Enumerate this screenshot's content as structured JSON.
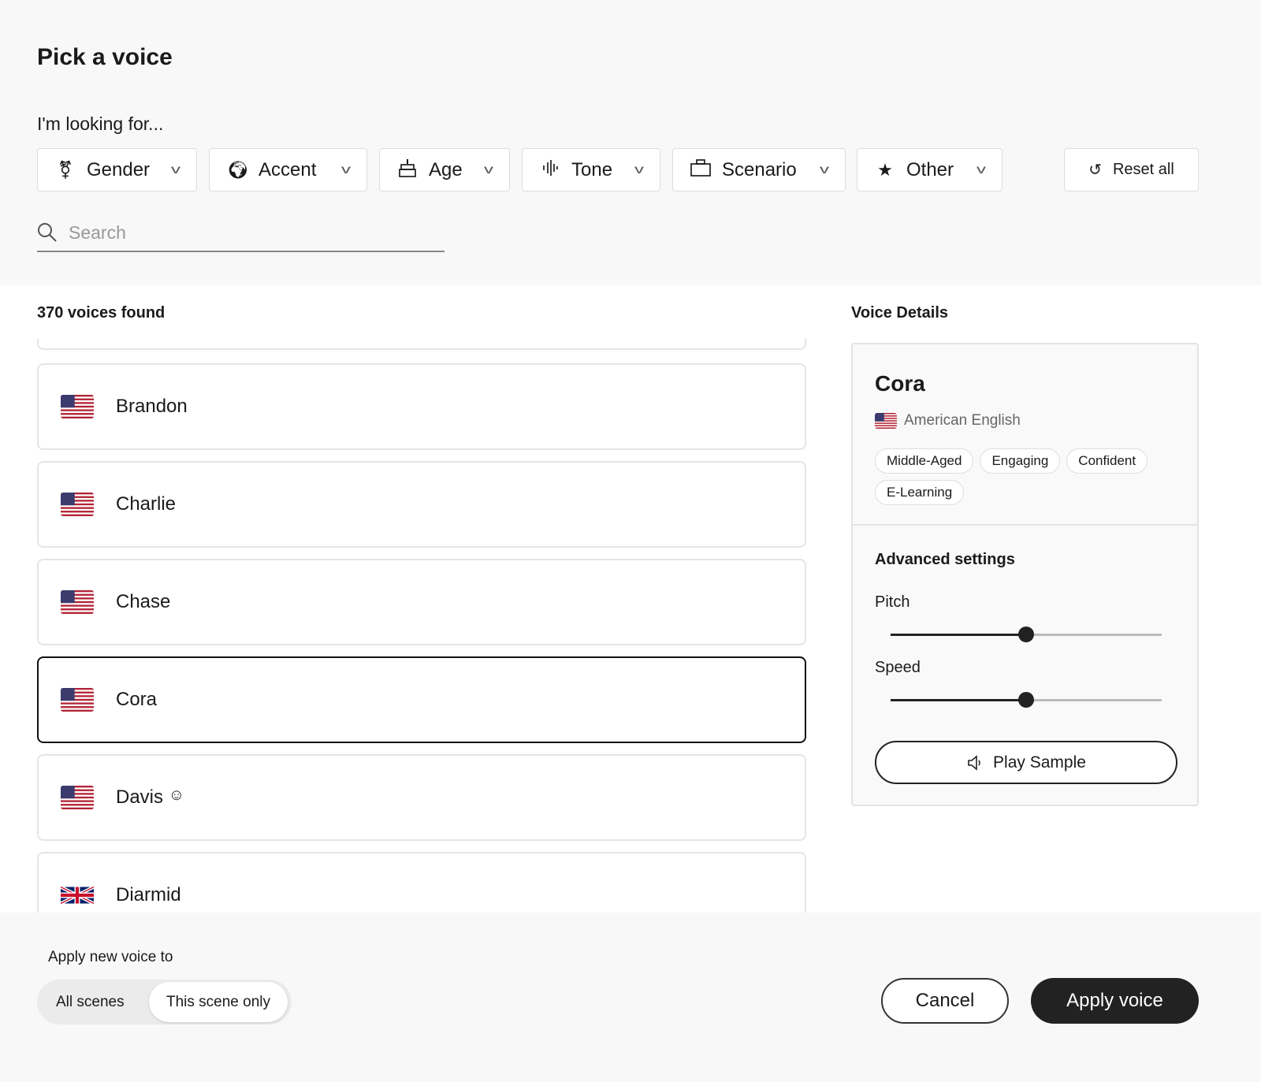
{
  "title": "Pick a voice",
  "looking_for": "I'm looking for...",
  "filters": [
    {
      "label": "Gender",
      "icon": "gender-icon"
    },
    {
      "label": "Accent",
      "icon": "globe-icon"
    },
    {
      "label": "Age",
      "icon": "cake-icon"
    },
    {
      "label": "Tone",
      "icon": "waveform-icon"
    },
    {
      "label": "Scenario",
      "icon": "briefcase-icon"
    },
    {
      "label": "Other",
      "icon": "star-icon"
    }
  ],
  "reset_label": "Reset all",
  "search": {
    "placeholder": "Search",
    "value": ""
  },
  "count": "370 voices found",
  "voices": [
    {
      "name": "Brandon",
      "flag": "us"
    },
    {
      "name": "Charlie",
      "flag": "us"
    },
    {
      "name": "Chase",
      "flag": "us"
    },
    {
      "name": "Cora",
      "flag": "us",
      "selected": true
    },
    {
      "name": "Davis",
      "flag": "us",
      "badge": "smiley-plus-icon"
    },
    {
      "name": "Diarmid",
      "flag": "uk"
    }
  ],
  "details": {
    "heading": "Voice Details",
    "name": "Cora",
    "language": "American English",
    "tags": [
      "Middle-Aged",
      "Engaging",
      "Confident",
      "E-Learning"
    ],
    "advanced": "Advanced settings",
    "pitch_label": "Pitch",
    "pitch": 0.5,
    "speed_label": "Speed",
    "speed": 0.5,
    "play": "Play Sample"
  },
  "footer": {
    "apply_to": "Apply new voice to",
    "options": [
      "All scenes",
      "This scene only"
    ],
    "selected": "This scene only",
    "cancel": "Cancel",
    "apply": "Apply voice"
  }
}
